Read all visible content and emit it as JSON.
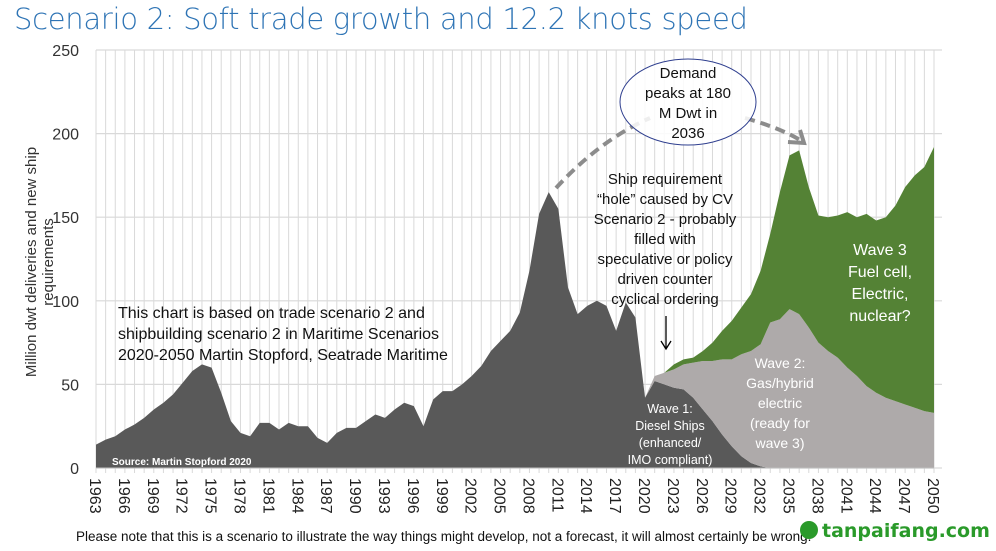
{
  "title": "Scenario  2: Soft trade growth and 12.2 knots speed",
  "chart_data": {
    "type": "area",
    "stacked": true,
    "title": "Scenario  2: Soft trade growth and 12.2 knots speed",
    "ylabel": "Million dwt deliveries and new ship requirements",
    "xlabel": "",
    "ylim": [
      0,
      250
    ],
    "yticks": [
      0,
      50,
      100,
      150,
      200,
      250
    ],
    "xlim": [
      1963,
      2050
    ],
    "xticks": [
      1963,
      1966,
      1969,
      1972,
      1975,
      1978,
      1981,
      1984,
      1987,
      1990,
      1993,
      1996,
      1999,
      2002,
      2005,
      2008,
      2011,
      2014,
      2017,
      2020,
      2023,
      2026,
      2029,
      2032,
      2035,
      2038,
      2041,
      2044,
      2047,
      2050
    ],
    "grid": true,
    "colors": [
      "#595959",
      "#aeaaaa",
      "#548235"
    ],
    "x_start": 1963,
    "series": [
      {
        "values": [
          14,
          17,
          19,
          23,
          26,
          30,
          35,
          39,
          44,
          51,
          58,
          62,
          60,
          45,
          28,
          21,
          19,
          27,
          27,
          23,
          27,
          25,
          25,
          18,
          15,
          21,
          24,
          24,
          28,
          32,
          30,
          35,
          39,
          37,
          25,
          41,
          46,
          46,
          50,
          55,
          61,
          70,
          76,
          82,
          93,
          118,
          152,
          165,
          155,
          108,
          92,
          97,
          100,
          97,
          82,
          99,
          90,
          42,
          52,
          50,
          48,
          47,
          42,
          35,
          28,
          20,
          13,
          7,
          3,
          1,
          0,
          0,
          0,
          0,
          0,
          0,
          0,
          0,
          0,
          0,
          0,
          0,
          0,
          0,
          0,
          0,
          0,
          0
        ]
      },
      {
        "values": [
          0,
          0,
          0,
          0,
          0,
          0,
          0,
          0,
          0,
          0,
          0,
          0,
          0,
          0,
          0,
          0,
          0,
          0,
          0,
          0,
          0,
          0,
          0,
          0,
          0,
          0,
          0,
          0,
          0,
          0,
          0,
          0,
          0,
          0,
          0,
          0,
          0,
          0,
          0,
          0,
          0,
          0,
          0,
          0,
          0,
          0,
          0,
          0,
          0,
          0,
          0,
          0,
          0,
          0,
          0,
          0,
          0,
          0,
          3,
          7,
          11,
          15,
          21,
          29,
          36,
          45,
          52,
          61,
          67,
          73,
          87,
          89,
          95,
          92,
          84,
          75,
          70,
          66,
          60,
          55,
          49,
          45,
          42,
          40,
          38,
          36,
          34,
          33
        ]
      },
      {
        "values": [
          0,
          0,
          0,
          0,
          0,
          0,
          0,
          0,
          0,
          0,
          0,
          0,
          0,
          0,
          0,
          0,
          0,
          0,
          0,
          0,
          0,
          0,
          0,
          0,
          0,
          0,
          0,
          0,
          0,
          0,
          0,
          0,
          0,
          0,
          0,
          0,
          0,
          0,
          0,
          0,
          0,
          0,
          0,
          0,
          0,
          0,
          0,
          0,
          0,
          0,
          0,
          0,
          0,
          0,
          0,
          0,
          0,
          0,
          0,
          0,
          3,
          3,
          3,
          6,
          11,
          17,
          23,
          28,
          34,
          44,
          53,
          76,
          92,
          98,
          84,
          76,
          80,
          85,
          93,
          95,
          103,
          103,
          108,
          117,
          130,
          139,
          146,
          159
        ]
      }
    ],
    "annotations": {
      "source": "Source: Martin Stopford 2020",
      "basis": [
        "This chart is based on trade scenario 2 and",
        "shipbuilding scenario 2 in Maritime Scenarios",
        "2020-2050 Martin Stopford, Seatrade Maritime"
      ],
      "demand": [
        "Demand",
        "peaks at 180",
        "M Dwt in",
        "2036"
      ],
      "hole": [
        "Ship requirement",
        "“hole” caused by CV",
        "Scenario 2 - probably",
        "filled with",
        "speculative or policy",
        "driven counter",
        "cyclical ordering"
      ],
      "wave1": [
        "Wave 1:",
        "Diesel Ships",
        "(enhanced/",
        "IMO compliant)"
      ],
      "wave2": [
        "Wave 2:",
        "Gas/hybrid",
        "electric",
        "(ready for",
        "wave 3)"
      ],
      "wave3": [
        "Wave 3",
        "Fuel cell,",
        "Electric,",
        "nuclear?"
      ]
    }
  },
  "footnote": "Please note that this is a scenario to illustrate the way things might develop, not a forecast, it will almost certainly be wrong.",
  "watermark": "tanpaifang.com"
}
